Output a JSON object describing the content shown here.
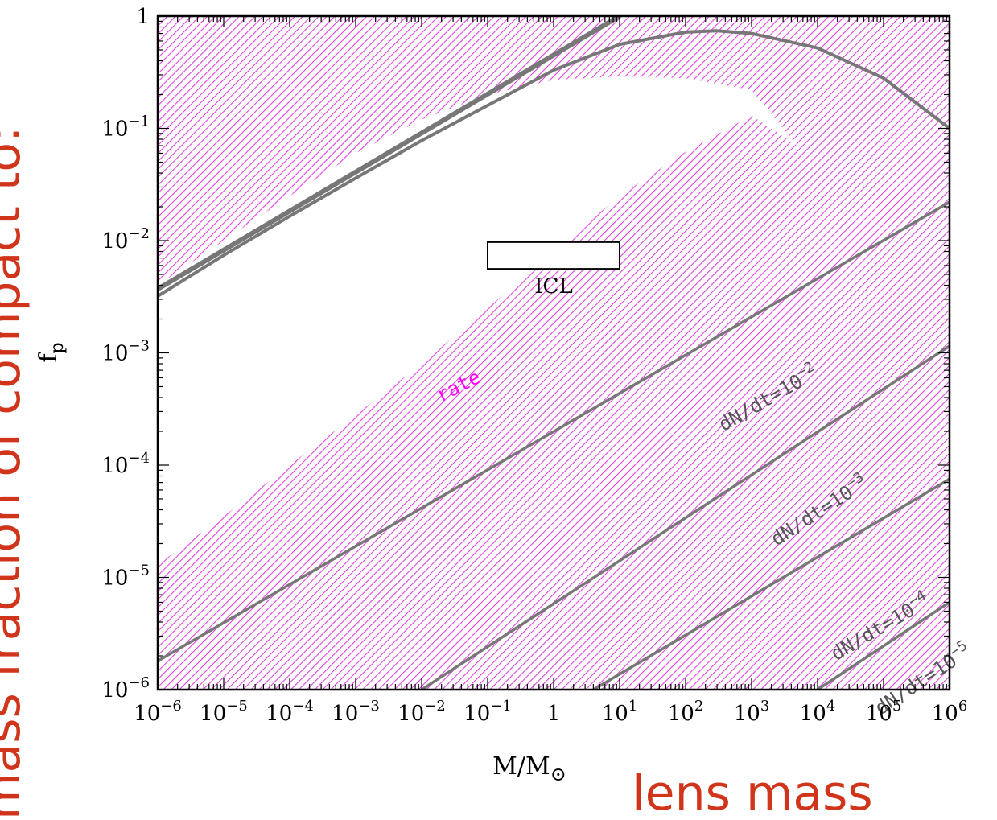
{
  "chart_data": {
    "type": "line",
    "xlabel": "M/M⊙",
    "ylabel": "f_p",
    "xscale": "log",
    "yscale": "log",
    "xlim": [
      1e-06,
      1000000.0
    ],
    "ylim": [
      1e-06,
      1
    ],
    "x_ticks": [
      {
        "value": 1e-06,
        "base": "10",
        "exp": "−6"
      },
      {
        "value": 1e-05,
        "base": "10",
        "exp": "−5"
      },
      {
        "value": 0.0001,
        "base": "10",
        "exp": "−4"
      },
      {
        "value": 0.001,
        "base": "10",
        "exp": "−3"
      },
      {
        "value": 0.01,
        "base": "10",
        "exp": "−2"
      },
      {
        "value": 0.1,
        "base": "10",
        "exp": "−1"
      },
      {
        "value": 1,
        "base": "1",
        "exp": ""
      },
      {
        "value": 10.0,
        "base": "10",
        "exp": "1"
      },
      {
        "value": 100.0,
        "base": "10",
        "exp": "2"
      },
      {
        "value": 1000.0,
        "base": "10",
        "exp": "3"
      },
      {
        "value": 10000.0,
        "base": "10",
        "exp": "4"
      },
      {
        "value": 100000.0,
        "base": "10",
        "exp": "5"
      },
      {
        "value": 1000000.0,
        "base": "10",
        "exp": "6"
      }
    ],
    "y_ticks": [
      {
        "value": 1,
        "base": "1",
        "exp": ""
      },
      {
        "value": 0.1,
        "base": "10",
        "exp": "−1"
      },
      {
        "value": 0.01,
        "base": "10",
        "exp": "−2"
      },
      {
        "value": 0.001,
        "base": "10",
        "exp": "−3"
      },
      {
        "value": 0.0001,
        "base": "10",
        "exp": "−4"
      },
      {
        "value": 1e-05,
        "base": "10",
        "exp": "−5"
      },
      {
        "value": 1e-06,
        "base": "10",
        "exp": "−6"
      }
    ],
    "rate_lines": [
      {
        "label": "dN/dt=10",
        "exp": "−2",
        "x": [
          1e-06,
          1000000.0
        ],
        "y": [
          1.8e-06,
          0.022
        ]
      },
      {
        "label": "dN/dt=10",
        "exp": "−3",
        "x": [
          0.01,
          1000000.0
        ],
        "y": [
          1e-06,
          0.00115
        ]
      },
      {
        "label": "dN/dt=10",
        "exp": "−4",
        "x": [
          4,
          1000000.0
        ],
        "y": [
          1e-06,
          7.5e-05
        ]
      },
      {
        "label": "dN/dt=10",
        "exp": "−5",
        "x": [
          10000.0,
          1000000.0
        ],
        "y": [
          1e-06,
          6e-06
        ]
      }
    ],
    "upper_bound_curve": {
      "x": [
        1e-06,
        1e-05,
        0.0001,
        0.001,
        0.01,
        0.1,
        1,
        10,
        100,
        300,
        1000,
        10000.0,
        100000.0,
        1000000.0
      ],
      "y": [
        0.0032,
        0.0074,
        0.0165,
        0.036,
        0.078,
        0.16,
        0.33,
        0.56,
        0.72,
        0.74,
        0.7,
        0.52,
        0.28,
        0.1
      ]
    },
    "steep_curve": {
      "x": [
        1e-06,
        10
      ],
      "y": [
        0.0037,
        1
      ]
    },
    "allowed_region_boundary": {
      "x": [
        1e-06,
        1e-05,
        0.0001,
        0.001,
        0.01,
        0.1,
        1,
        10,
        100,
        1000,
        5000,
        3000,
        1000,
        100,
        10,
        1,
        0.1,
        0.01,
        0.001,
        0.0001,
        1e-05,
        1e-06
      ],
      "y": [
        1.3e-05,
        3.5e-05,
        0.0001,
        0.00028,
        0.0008,
        0.0025,
        0.008,
        0.025,
        0.062,
        0.13,
        0.07,
        0.1,
        0.22,
        0.28,
        0.29,
        0.27,
        0.2,
        0.12,
        0.06,
        0.025,
        0.01,
        0.004
      ]
    },
    "icl_box": {
      "label": "ICL",
      "x": [
        0.1,
        10
      ],
      "y": [
        0.0056,
        0.0097
      ]
    },
    "rate_annotation": {
      "text": "rate",
      "x": 0.04,
      "y": 0.00045
    },
    "colors": {
      "hatch": "#e040e0",
      "curves": "#777777",
      "axes": "#000000",
      "rate_text": "#ff00ff",
      "red_labels": "#d0351c"
    }
  },
  "overlay_labels": {
    "lens_mass": "lens mass",
    "left_vertical": "mass fraction of compact to:"
  }
}
